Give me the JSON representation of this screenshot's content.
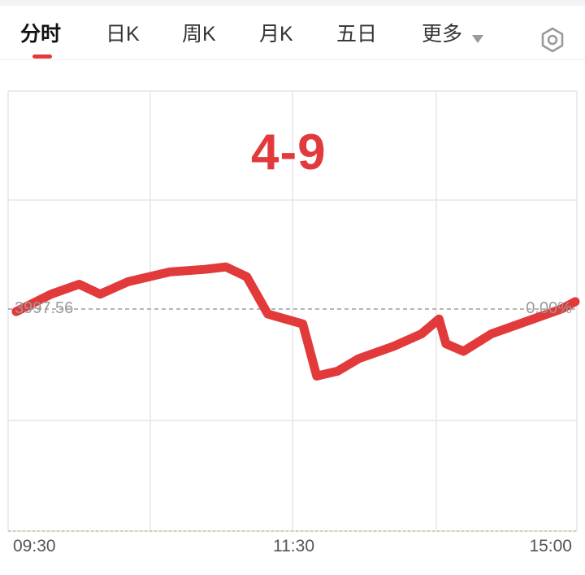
{
  "tabs": [
    {
      "label": "分时",
      "active": true
    },
    {
      "label": "日K",
      "active": false
    },
    {
      "label": "周K",
      "active": false
    },
    {
      "label": "月K",
      "active": false
    },
    {
      "label": "五日",
      "active": false
    },
    {
      "label": "更多",
      "active": false
    }
  ],
  "icons": {
    "dropdown": "triangle-down-icon",
    "settings": "settings-hexagon-icon"
  },
  "colors": {
    "price_line": "#e2393b",
    "accent": "#e33a3a",
    "grid": "#e6e6e6",
    "baseline": "#9e9e9e"
  },
  "chart_data": {
    "type": "line",
    "title": "",
    "annotation": "4-9",
    "x_ticks": [
      "09:30",
      "11:30",
      "15:00"
    ],
    "prev_close_label": "3997.56",
    "prev_close_pct_label": "0.00%",
    "y_range": [
      -9.0,
      3.0
    ],
    "series": [
      {
        "values": [
          [
            0,
            -0.1
          ],
          [
            10,
            0.6
          ],
          [
            18,
            1.0
          ],
          [
            24,
            0.6
          ],
          [
            32,
            1.1
          ],
          [
            44,
            1.5
          ],
          [
            54,
            1.6
          ],
          [
            60,
            1.7
          ],
          [
            66,
            1.3
          ],
          [
            72,
            -0.2
          ],
          [
            82,
            -0.6
          ],
          [
            86,
            -2.7
          ],
          [
            92,
            -2.5
          ],
          [
            98,
            -2.0
          ],
          [
            108,
            -1.5
          ],
          [
            116,
            -1.0
          ],
          [
            121,
            -0.4
          ],
          [
            123,
            -1.4
          ],
          [
            128,
            -1.7
          ],
          [
            136,
            -1.0
          ],
          [
            144,
            -0.6
          ],
          [
            156,
            0.0
          ],
          [
            160,
            0.3
          ]
        ]
      }
    ]
  }
}
